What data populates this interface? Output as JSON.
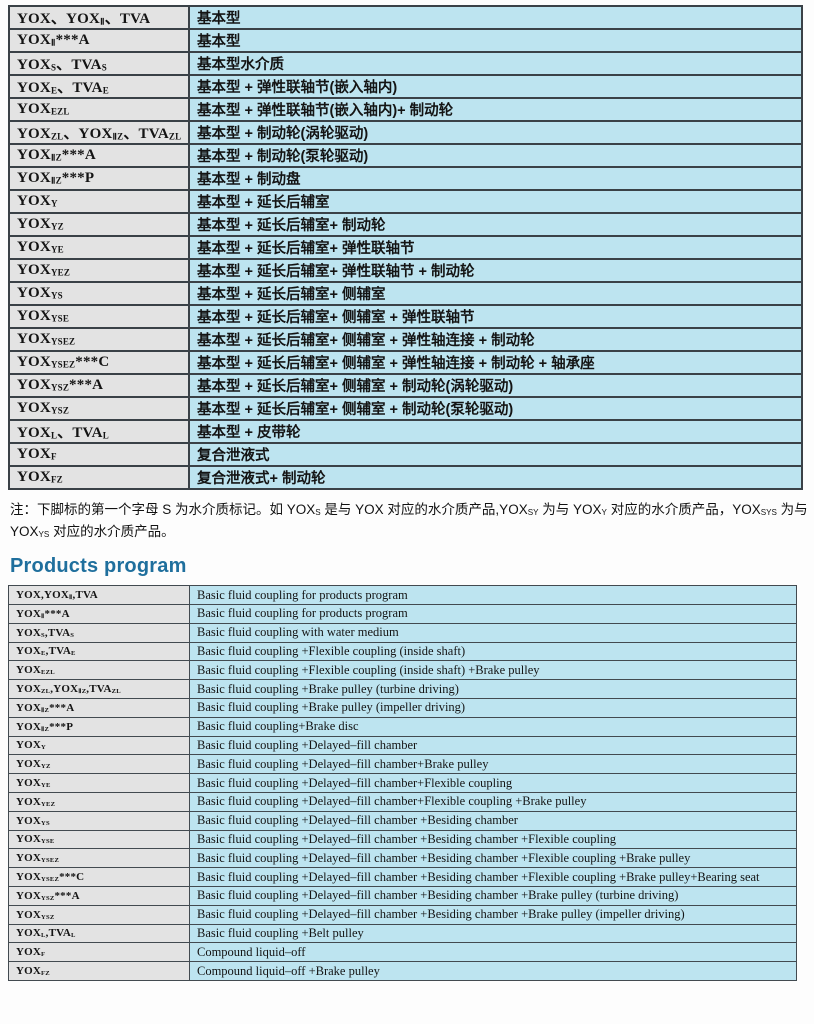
{
  "colors": {
    "accent": "#1f6f9d",
    "cell_gray": "#e3e3e3",
    "cell_blue": "#bde4f0",
    "border_dark": "#3a4147"
  },
  "cn_table": {
    "rows": [
      {
        "model": "YOX、YOX_{Ⅱ}、TVA",
        "desc": "基本型"
      },
      {
        "model": "YOX_{Ⅱ}***A",
        "desc": "基本型"
      },
      {
        "model": "YOX_{S}、TVA_{S}",
        "desc": "基本型水介质"
      },
      {
        "model": "YOX_{E}、TVA_{E}",
        "desc": "基本型 + 弹性联轴节(嵌入轴内)"
      },
      {
        "model": "YOX_{EZL}",
        "desc": "基本型 + 弹性联轴节(嵌入轴内)+ 制动轮"
      },
      {
        "model": "YOX_{ZL}、YOX_{ⅡZ}、TVA_{ZL}",
        "desc": "基本型 + 制动轮(涡轮驱动)"
      },
      {
        "model": "YOX_{ⅡZ}***A",
        "desc": "基本型 + 制动轮(泵轮驱动)"
      },
      {
        "model": "YOX_{ⅡZ}***P",
        "desc": "基本型 + 制动盘"
      },
      {
        "model": "YOX_{Y}",
        "desc": "基本型 + 延长后辅室"
      },
      {
        "model": "YOX_{YZ}",
        "desc": "基本型 + 延长后辅室+ 制动轮"
      },
      {
        "model": "YOX_{YE}",
        "desc": "基本型 + 延长后辅室+ 弹性联轴节"
      },
      {
        "model": "YOX_{YEZ}",
        "desc": "基本型 + 延长后辅室+ 弹性联轴节 + 制动轮"
      },
      {
        "model": "YOX_{YS}",
        "desc": "基本型 + 延长后辅室+ 侧辅室"
      },
      {
        "model": "YOX_{YSE}",
        "desc": "基本型 + 延长后辅室+ 侧辅室 + 弹性联轴节"
      },
      {
        "model": "YOX_{YSEZ}",
        "desc": "基本型 + 延长后辅室+ 侧辅室 + 弹性轴连接 + 制动轮"
      },
      {
        "model": "YOX_{YSEZ}***C",
        "desc": "基本型 + 延长后辅室+ 侧辅室 + 弹性轴连接 + 制动轮 + 轴承座"
      },
      {
        "model": "YOX_{YSZ}***A",
        "desc": "基本型 + 延长后辅室+ 侧辅室 + 制动轮(涡轮驱动)"
      },
      {
        "model": "YOX_{YSZ}",
        "desc": "基本型 + 延长后辅室+ 侧辅室 + 制动轮(泵轮驱动)"
      },
      {
        "model": "YOX_{L}、TVA_{L}",
        "desc": "基本型 + 皮带轮"
      },
      {
        "model": "YOX_{F}",
        "desc": "复合泄液式"
      },
      {
        "model": "YOX_{FZ}",
        "desc": "复合泄液式+ 制动轮"
      }
    ]
  },
  "note": {
    "text": "注：下脚标的第一个字母 S 为水介质标记。如 YOX_{S} 是与 YOX 对应的水介质产品,YOX_{SY} 为与 YOX_{Y} 对应的水介质产品，YOX_{SYS} 为与 YOX_{YS} 对应的水介质产品。"
  },
  "heading": {
    "title": "Products program"
  },
  "en_table": {
    "rows": [
      {
        "model": "YOX,YOX_{Ⅱ},TVA",
        "desc": "Basic fluid coupling for products program"
      },
      {
        "model": "YOX_{Ⅱ}***A",
        "desc": "Basic fluid coupling for products program"
      },
      {
        "model": "YOX_{S},TVA_{S}",
        "desc": "Basic fluid coupling with water medium"
      },
      {
        "model": "YOX_{E},TVA_{E}",
        "desc": "Basic fluid coupling +Flexible coupling (inside shaft)"
      },
      {
        "model": "YOX_{EZL}",
        "desc": "Basic fluid coupling +Flexible coupling (inside shaft) +Brake pulley"
      },
      {
        "model": "YOX_{ZL},YOX_{ⅡZ},TVA_{ZL}",
        "desc": "Basic fluid coupling +Brake pulley (turbine driving)"
      },
      {
        "model": "YOX_{ⅡZ}***A",
        "desc": "Basic fluid coupling +Brake pulley (impeller driving)"
      },
      {
        "model": "YOX_{ⅡZ}***P",
        "desc": "Basic fluid coupling+Brake disc"
      },
      {
        "model": "YOX_{Y}",
        "desc": "Basic fluid coupling +Delayed–fill chamber"
      },
      {
        "model": "YOX_{YZ}",
        "desc": "Basic fluid coupling +Delayed–fill chamber+Brake pulley"
      },
      {
        "model": "YOX_{YE}",
        "desc": "Basic fluid coupling +Delayed–fill chamber+Flexible coupling"
      },
      {
        "model": "YOX_{YEZ}",
        "desc": "Basic fluid coupling +Delayed–fill chamber+Flexible coupling +Brake pulley"
      },
      {
        "model": "YOX_{YS}",
        "desc": "Basic fluid coupling +Delayed–fill chamber +Besiding chamber"
      },
      {
        "model": "YOX_{YSE}",
        "desc": "Basic fluid coupling +Delayed–fill chamber +Besiding chamber +Flexible coupling"
      },
      {
        "model": "YOX_{YSEZ}",
        "desc": "Basic fluid coupling +Delayed–fill chamber +Besiding chamber +Flexible coupling +Brake pulley"
      },
      {
        "model": "YOX_{YSEZ}***C",
        "desc": "Basic fluid coupling +Delayed–fill chamber +Besiding chamber +Flexible coupling +Brake pulley+Bearing seat"
      },
      {
        "model": "YOX_{YSZ}***A",
        "desc": "Basic fluid coupling +Delayed–fill chamber +Besiding chamber +Brake pulley (turbine driving)"
      },
      {
        "model": "YOX_{YSZ}",
        "desc": "Basic fluid coupling +Delayed–fill chamber +Besiding chamber +Brake pulley (impeller driving)"
      },
      {
        "model": "YOX_{L},TVA_{L}",
        "desc": "Basic fluid coupling +Belt pulley"
      },
      {
        "model": "YOX_{F}",
        "desc": "Compound liquid–off"
      },
      {
        "model": "YOX_{FZ}",
        "desc": "Compound liquid–off +Brake pulley"
      }
    ]
  }
}
